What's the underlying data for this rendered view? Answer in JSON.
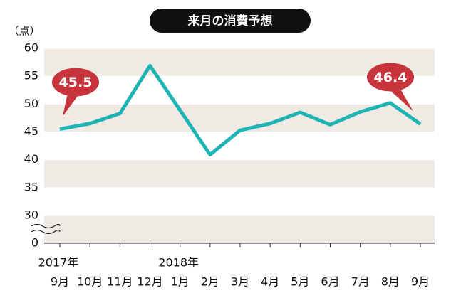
{
  "chart_data": {
    "type": "line",
    "title": "来月の消費予想",
    "y_unit": "（点）",
    "categories": [
      "9月",
      "10月",
      "11月",
      "12月",
      "1月",
      "2月",
      "3月",
      "4月",
      "5月",
      "6月",
      "7月",
      "8月",
      "9月"
    ],
    "category_years": [
      "2017年",
      null,
      null,
      null,
      "2018年",
      null,
      null,
      null,
      null,
      null,
      null,
      null,
      null
    ],
    "values": [
      45.5,
      46.5,
      48.3,
      56.9,
      48.9,
      40.9,
      45.3,
      46.5,
      48.5,
      46.3,
      48.6,
      50.2,
      46.4
    ],
    "value_labels": [
      "45.5",
      null,
      null,
      null,
      null,
      null,
      null,
      null,
      null,
      null,
      null,
      null,
      "46.4"
    ],
    "color": "#1fb4b4",
    "label_color": "#c7343c",
    "ylim": [
      0,
      60
    ],
    "yticks": [
      0,
      30,
      35,
      40,
      45,
      50,
      55,
      60
    ],
    "axis_break": [
      0,
      30
    ],
    "grid": true
  }
}
